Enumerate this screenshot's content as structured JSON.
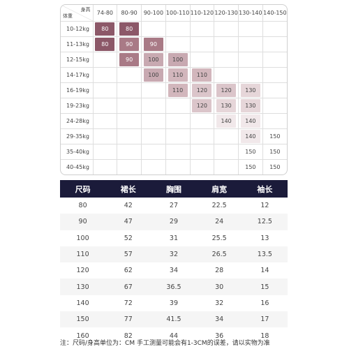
{
  "grid": {
    "corner": {
      "height_label": "身高",
      "weight_label": "体重"
    },
    "columns": [
      "74-80",
      "80-90",
      "90-100",
      "100-110",
      "110-120",
      "120-130",
      "130-140",
      "140-150"
    ],
    "rows": [
      {
        "label": "10-12kg",
        "cells": [
          {
            "col": 0,
            "v": "80"
          },
          {
            "col": 1,
            "v": "80"
          }
        ]
      },
      {
        "label": "11-13kg",
        "cells": [
          {
            "col": 0,
            "v": "80"
          },
          {
            "col": 1,
            "v": "90"
          },
          {
            "col": 2,
            "v": "90"
          }
        ]
      },
      {
        "label": "12-15kg",
        "cells": [
          {
            "col": 1,
            "v": "90"
          },
          {
            "col": 2,
            "v": "100"
          },
          {
            "col": 3,
            "v": "100"
          }
        ]
      },
      {
        "label": "14-17kg",
        "cells": [
          {
            "col": 2,
            "v": "100"
          },
          {
            "col": 3,
            "v": "110"
          },
          {
            "col": 4,
            "v": "110"
          }
        ]
      },
      {
        "label": "16-19kg",
        "cells": [
          {
            "col": 3,
            "v": "110"
          },
          {
            "col": 4,
            "v": "120"
          },
          {
            "col": 5,
            "v": "120"
          },
          {
            "col": 6,
            "v": "130"
          }
        ]
      },
      {
        "label": "19-23kg",
        "cells": [
          {
            "col": 4,
            "v": "120"
          },
          {
            "col": 5,
            "v": "130"
          },
          {
            "col": 6,
            "v": "130"
          }
        ]
      },
      {
        "label": "24-28kg",
        "cells": [
          {
            "col": 5,
            "v": "140"
          },
          {
            "col": 6,
            "v": "140"
          }
        ]
      },
      {
        "label": "29-35kg",
        "cells": [
          {
            "col": 6,
            "v": "140"
          },
          {
            "col": 7,
            "v": "150"
          }
        ]
      },
      {
        "label": "35-40kg",
        "cells": [
          {
            "col": 6,
            "v": "150"
          },
          {
            "col": 7,
            "v": "150"
          }
        ]
      },
      {
        "label": "40-45kg",
        "cells": [
          {
            "col": 6,
            "v": "150"
          },
          {
            "col": 7,
            "v": "150"
          }
        ]
      }
    ],
    "swatch_colors": {
      "80": "#8c5868",
      "90": "#a97a86",
      "100": "#c8a9b1",
      "110": "#d2b6bc",
      "120": "#dbc5ca",
      "130": "#e6d6d9",
      "140": "#f1e8ea",
      "150": "#ffffff"
    },
    "swatch_text_colors": {
      "80": "#ffffff",
      "90": "#ffffff",
      "100": "#444444",
      "110": "#444444",
      "120": "#444444",
      "130": "#444444",
      "140": "#444444",
      "150": "#444444"
    }
  },
  "measurements": {
    "headers": [
      "尺码",
      "裙长",
      "胸围",
      "肩宽",
      "袖长"
    ],
    "rows": [
      [
        "80",
        "42",
        "27",
        "22.5",
        "12"
      ],
      [
        "90",
        "47",
        "29",
        "24",
        "12.5"
      ],
      [
        "100",
        "52",
        "31",
        "25.5",
        "13"
      ],
      [
        "110",
        "57",
        "32",
        "26.5",
        "13.5"
      ],
      [
        "120",
        "62",
        "34",
        "28",
        "14"
      ],
      [
        "130",
        "67",
        "36.5",
        "30",
        "15"
      ],
      [
        "140",
        "72",
        "39",
        "32",
        "16"
      ],
      [
        "150",
        "77",
        "41.5",
        "34",
        "17"
      ],
      [
        "160",
        "82",
        "44",
        "36",
        "18"
      ]
    ],
    "header_bg": "#1b1b3a"
  },
  "note": "注：尺码/身高单位为：CM 手工测量可能会有1-3CM的误差，请以实物为准"
}
